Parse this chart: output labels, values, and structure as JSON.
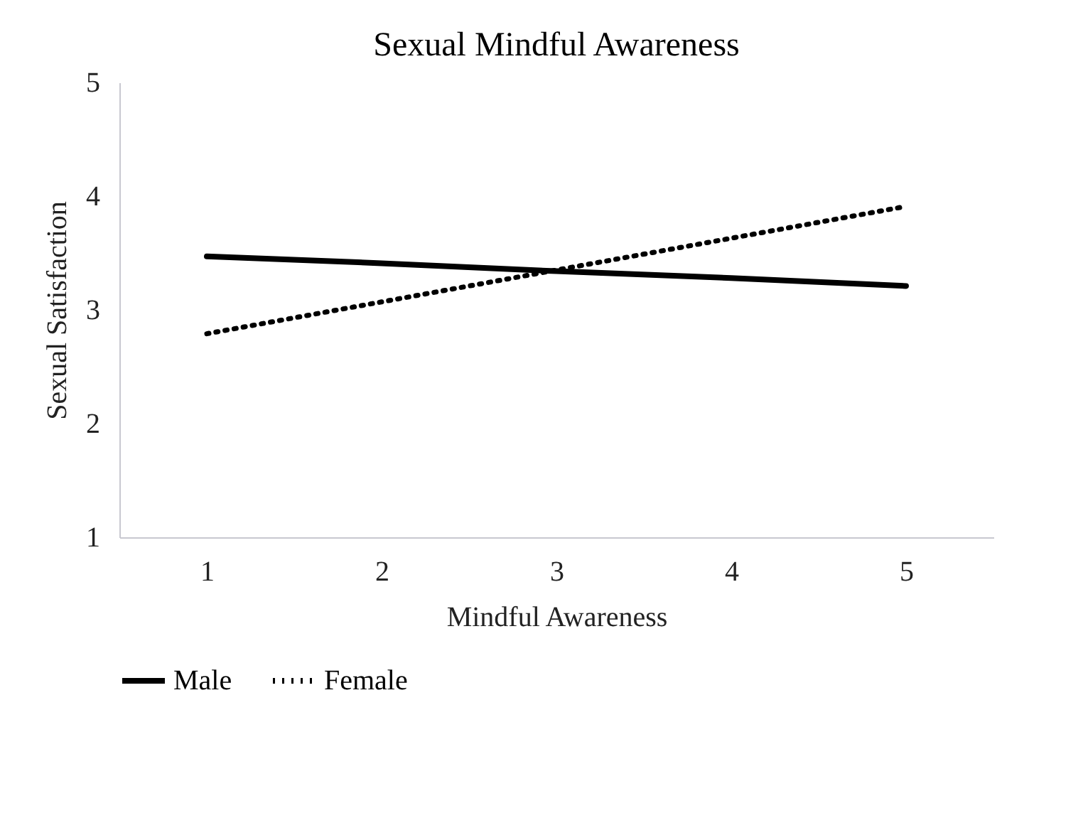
{
  "chart_data": {
    "type": "line",
    "title": "Sexual Mindful Awareness",
    "xlabel": "Mindful Awareness",
    "ylabel": "Sexual Satisfaction",
    "categories": [
      "1",
      "2",
      "3",
      "4",
      "5"
    ],
    "series": [
      {
        "name": "Male",
        "color": "#000000",
        "line_style": "solid",
        "values": [
          3.47,
          3.41,
          3.34,
          3.28,
          3.21
        ]
      },
      {
        "name": "Female",
        "color": "#000000",
        "line_style": "dotted",
        "values": [
          2.79,
          3.07,
          3.35,
          3.63,
          3.91
        ]
      }
    ],
    "ylim": [
      1,
      5
    ],
    "yticks": [
      1,
      2,
      3,
      4,
      5
    ],
    "grid": false,
    "legend": "bottom"
  }
}
